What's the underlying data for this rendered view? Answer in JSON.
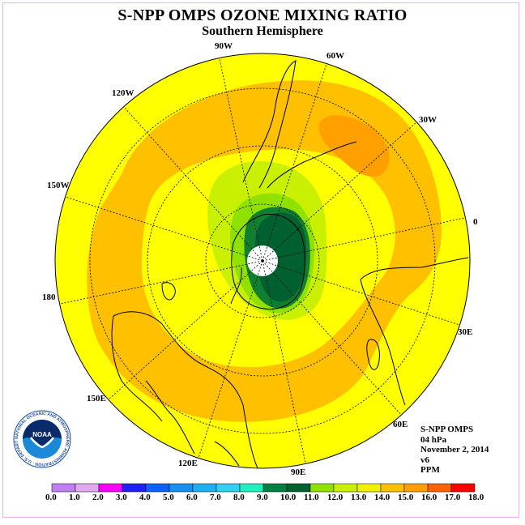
{
  "title": "S-NPP OMPS OZONE MIXING RATIO",
  "subtitle": "Southern Hemisphere",
  "longitude_labels": [
    {
      "key": "90w",
      "text": "90W"
    },
    {
      "key": "60w",
      "text": "60W"
    },
    {
      "key": "120w",
      "text": "120W"
    },
    {
      "key": "30w",
      "text": "30W"
    },
    {
      "key": "150w",
      "text": "150W"
    },
    {
      "key": "0",
      "text": "0"
    },
    {
      "key": "180",
      "text": "180"
    },
    {
      "key": "30e",
      "text": "30E"
    },
    {
      "key": "150e",
      "text": "150E"
    },
    {
      "key": "60e",
      "text": "60E"
    },
    {
      "key": "120e",
      "text": "120E"
    },
    {
      "key": "90e",
      "text": "90E"
    }
  ],
  "info": {
    "instrument": "S-NPP OMPS",
    "pressure": "04 hPa",
    "date": "November 2, 2014",
    "version": "v6",
    "units": "PPM"
  },
  "logo": {
    "text": "NOAA",
    "ring_text": "NATIONAL OCEANIC AND ATMOSPHERIC ADMINISTRATION · U.S. DEPARTMENT OF COMMERCE"
  },
  "colorbar": {
    "ticks": [
      "0.0",
      "1.0",
      "2.0",
      "3.0",
      "4.0",
      "5.0",
      "6.0",
      "7.0",
      "8.0",
      "9.0",
      "10.0",
      "11.0",
      "12.0",
      "13.0",
      "14.0",
      "15.0",
      "16.0",
      "17.0",
      "18.0"
    ],
    "colors": [
      "#c080f0",
      "#e0a8f0",
      "#ff00ff",
      "#2020ff",
      "#1060ff",
      "#1890f0",
      "#20b0f0",
      "#30d0f0",
      "#20f0c0",
      "#008040",
      "#006030",
      "#90e000",
      "#c8f000",
      "#f0f000",
      "#ffc000",
      "#ffa000",
      "#ff6000",
      "#ff0000",
      "#805030"
    ]
  },
  "colors": {
    "c12_13": "#ffff00",
    "c13_14": "#ffc000",
    "c14_15": "#ffa000",
    "c11_12": "#c8f000",
    "c10_11": "#90e000",
    "c9_10": "#108030",
    "c8_9": "#006030",
    "pole": "#ffffff"
  }
}
